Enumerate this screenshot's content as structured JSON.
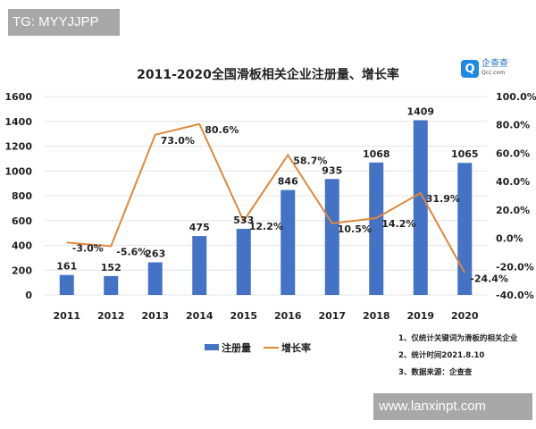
{
  "watermarks": {
    "top": "TG: MYYJJPP",
    "bottom": "www.lanxinpt.com"
  },
  "logo": {
    "name": "企查查",
    "domain": "Qcc.com"
  },
  "notes": [
    "1、仅统计关键词为滑板的相关企业",
    "2、统计时间2021.8.10",
    "3、数据来源：企查查"
  ],
  "chart_data": {
    "type": "bar+line",
    "title": "2011-2020全国滑板相关企业注册量、增长率",
    "categories": [
      "2011",
      "2012",
      "2013",
      "2014",
      "2015",
      "2016",
      "2017",
      "2018",
      "2019",
      "2020"
    ],
    "series": [
      {
        "name": "注册量",
        "type": "bar",
        "axis": "left",
        "color": "#4472c4",
        "values": [
          161,
          152,
          263,
          475,
          533,
          846,
          935,
          1068,
          1409,
          1065
        ],
        "labels": [
          "161",
          "152",
          "263",
          "475",
          "533",
          "846",
          "935",
          "1068",
          "1409",
          "1065"
        ]
      },
      {
        "name": "增长率",
        "type": "line",
        "axis": "right",
        "color": "#e0883a",
        "values": [
          -3.0,
          -5.6,
          73.0,
          80.6,
          12.2,
          58.7,
          10.5,
          14.2,
          31.9,
          -24.4
        ],
        "labels": [
          "-3.0%",
          "-5.6%",
          "73.0%",
          "80.6%",
          "12.2%",
          "58.7%",
          "10.5%",
          "14.2%",
          "31.9%",
          "-24.4%"
        ]
      }
    ],
    "y_left": {
      "range": [
        0,
        1600
      ],
      "ticks": [
        "0",
        "200",
        "400",
        "600",
        "800",
        "1000",
        "1200",
        "1400",
        "1600"
      ]
    },
    "y_right": {
      "range": [
        -40,
        100
      ],
      "ticks": [
        "-40.0%",
        "-20.0%",
        "0.0%",
        "20.0%",
        "40.0%",
        "60.0%",
        "80.0%",
        "100.0%"
      ]
    },
    "grid": true,
    "legend": "bottom"
  }
}
